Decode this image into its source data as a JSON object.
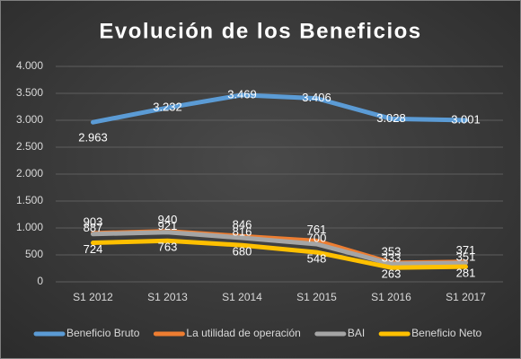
{
  "chart_data": {
    "type": "line",
    "title": "Evolución de los Beneficios",
    "categories": [
      "S1 2012",
      "S1 2013",
      "S1 2014",
      "S1 2015",
      "S1 2016",
      "S1 2017"
    ],
    "ylim": [
      0,
      4000
    ],
    "yticks": [
      0,
      500,
      {
        "value": 1000,
        "label": "1.000"
      },
      {
        "value": 1500,
        "label": "1.500"
      },
      {
        "value": 2000,
        "label": "2.000"
      },
      {
        "value": 2500,
        "label": "2.500"
      },
      {
        "value": 3000,
        "label": "3.000"
      },
      {
        "value": 3500,
        "label": "3.500"
      },
      {
        "value": 4000,
        "label": "4.000"
      }
    ],
    "grid": true,
    "legend": "bottom",
    "series": [
      {
        "name": "Beneficio Bruto",
        "color": "#5b9bd5",
        "values": [
          2963,
          3232,
          3469,
          3406,
          3028,
          3001
        ],
        "value_labels": [
          "2.963",
          "3.232",
          "3.469",
          "3.406",
          "3.028",
          "3.001"
        ]
      },
      {
        "name": "La utilidad de operación",
        "color": "#ed7d31",
        "values": [
          903,
          940,
          846,
          761,
          353,
          371
        ]
      },
      {
        "name": "BAI",
        "color": "#a5a5a5",
        "values": [
          887,
          921,
          816,
          700,
          333,
          351
        ]
      },
      {
        "name": "Beneficio Neto",
        "color": "#ffc000",
        "values": [
          724,
          763,
          680,
          548,
          263,
          281
        ]
      }
    ]
  }
}
